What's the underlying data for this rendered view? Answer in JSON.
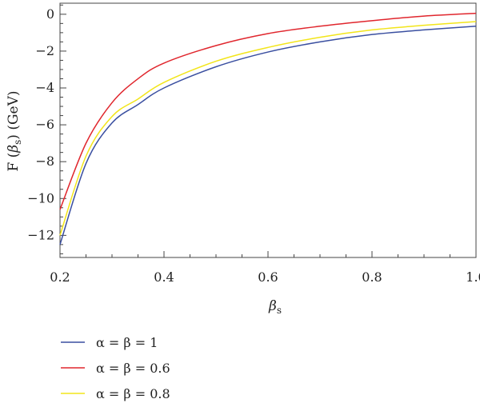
{
  "chart_data": {
    "type": "line",
    "xlabel": {
      "symbol": "β",
      "subscript": "s"
    },
    "ylabel": {
      "prefix": "F (",
      "symbol": "β",
      "subscript": "s",
      "suffix": ") (GeV)"
    },
    "xlim": [
      0.2,
      1.0
    ],
    "ylim": [
      -13.2,
      0.6
    ],
    "xticks": [
      0.2,
      0.4,
      0.6,
      0.8,
      1.0
    ],
    "xtick_labels": [
      "0.2",
      "0.4",
      "0.6",
      "0.8",
      "1.0"
    ],
    "yticks": [
      0,
      -2,
      -4,
      -6,
      -8,
      -10,
      -12
    ],
    "ytick_labels": [
      "0",
      "−2",
      "−4",
      "−6",
      "−8",
      "−10",
      "−12"
    ],
    "grid": false,
    "legend_position": "bottom-left",
    "x": [
      0.2,
      0.25,
      0.3,
      0.35,
      0.4,
      0.5,
      0.6,
      0.7,
      0.8,
      0.9,
      1.0
    ],
    "series": [
      {
        "name": "α = β = 1",
        "color": "#3a4fa0",
        "values": [
          -12.5,
          -8.1,
          -5.9,
          -4.9,
          -4.0,
          -2.85,
          -2.05,
          -1.5,
          -1.1,
          -0.85,
          -0.65
        ]
      },
      {
        "name": "α = β = 0.6",
        "color": "#e0262d",
        "values": [
          -10.6,
          -7.0,
          -4.8,
          -3.5,
          -2.65,
          -1.7,
          -1.05,
          -0.65,
          -0.35,
          -0.1,
          0.05
        ]
      },
      {
        "name": "α = β = 0.8",
        "color": "#f2e51a",
        "values": [
          -12.0,
          -7.7,
          -5.55,
          -4.6,
          -3.7,
          -2.55,
          -1.8,
          -1.25,
          -0.85,
          -0.6,
          -0.4
        ]
      }
    ]
  }
}
